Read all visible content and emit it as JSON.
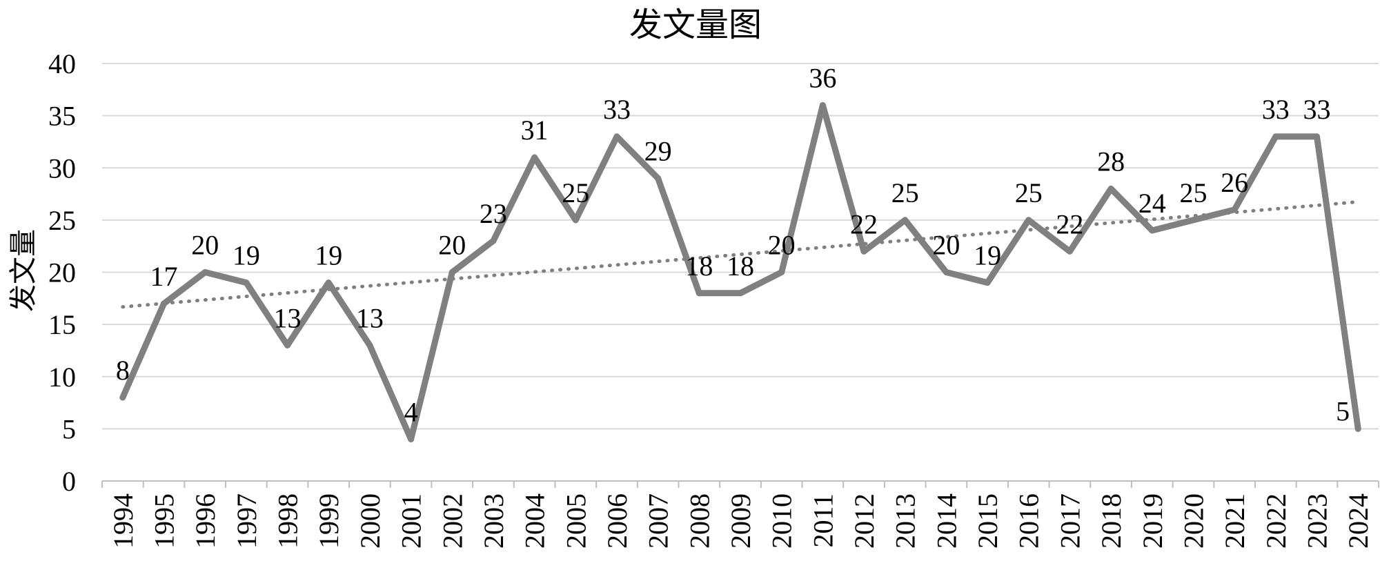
{
  "chart_data": {
    "type": "line",
    "title": "发文量图",
    "xlabel": "",
    "ylabel": "发文量",
    "ylim": [
      0,
      40
    ],
    "yticks": [
      0,
      5,
      10,
      15,
      20,
      25,
      30,
      35,
      40
    ],
    "grid": true,
    "legend": "none",
    "categories": [
      "1994",
      "1995",
      "1996",
      "1997",
      "1998",
      "1999",
      "2000",
      "2001",
      "2002",
      "2003",
      "2004",
      "2005",
      "2006",
      "2007",
      "2008",
      "2009",
      "2010",
      "2011",
      "2012",
      "2013",
      "2014",
      "2015",
      "2016",
      "2017",
      "2018",
      "2019",
      "2020",
      "2021",
      "2022",
      "2023",
      "2024"
    ],
    "series": [
      {
        "values": [
          8,
          17,
          20,
          19,
          13,
          19,
          13,
          4,
          20,
          23,
          31,
          25,
          33,
          29,
          18,
          18,
          20,
          36,
          22,
          25,
          20,
          19,
          25,
          22,
          28,
          24,
          25,
          26,
          33,
          33,
          5
        ],
        "color": "#808080",
        "data_labels": true
      }
    ],
    "trendline": {
      "type": "linear",
      "style": "dotted",
      "color": "#7f7f7f"
    }
  }
}
